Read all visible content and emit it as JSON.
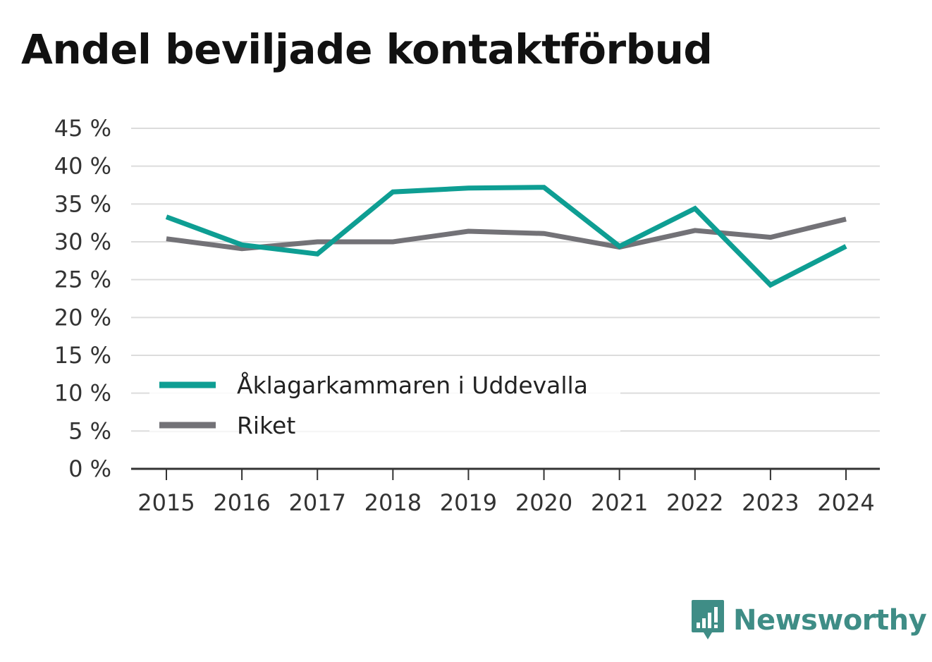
{
  "title": "Andel beviljade kontaktförbud",
  "brand": {
    "name": "Newsworthy",
    "icon": "newsworthy-logo-icon",
    "color": "#3f8d86"
  },
  "chart_data": {
    "type": "line",
    "title": "Andel beviljade kontaktförbud",
    "x": [
      "2015",
      "2016",
      "2017",
      "2018",
      "2019",
      "2020",
      "2021",
      "2022",
      "2023",
      "2024"
    ],
    "y_ticks": [
      "0 %",
      "5 %",
      "10 %",
      "15 %",
      "20 %",
      "25 %",
      "30 %",
      "35 %",
      "40 %",
      "45 %"
    ],
    "ylim": [
      0,
      45
    ],
    "y_unit": "%",
    "grid": true,
    "legend_position": "bottom-left",
    "series": [
      {
        "name": "Åklagarkammaren i Uddevalla",
        "color": "#0e9e93",
        "values": [
          33.3,
          29.6,
          28.4,
          36.6,
          37.1,
          37.2,
          29.4,
          34.4,
          24.3,
          29.4
        ]
      },
      {
        "name": "Riket",
        "color": "#737277",
        "values": [
          30.4,
          29.1,
          30.0,
          30.0,
          31.4,
          31.1,
          29.3,
          31.5,
          30.6,
          33.0
        ]
      }
    ]
  }
}
